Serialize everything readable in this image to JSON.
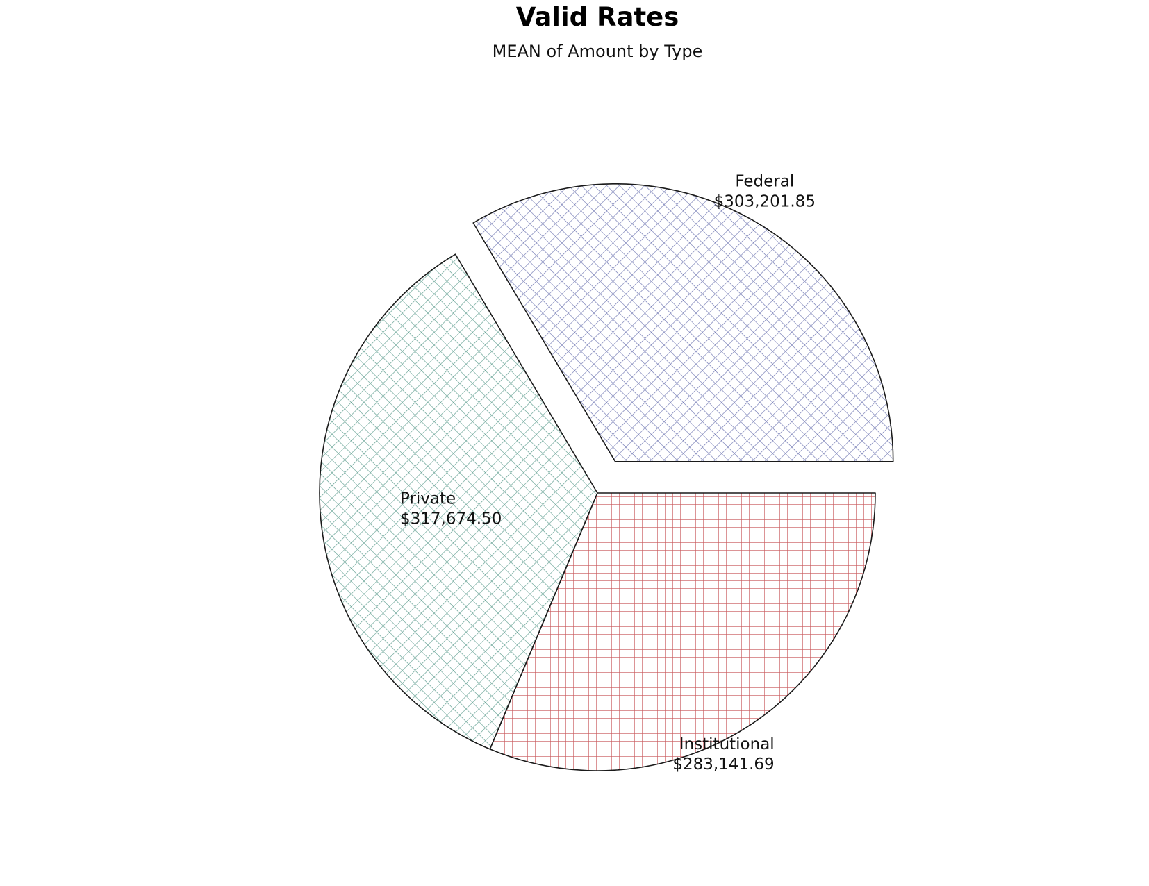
{
  "chart_data": {
    "type": "pie",
    "title": "Valid Rates",
    "subtitle": "MEAN of Amount by Type",
    "statistic": "MEAN",
    "categories": [
      "Federal",
      "Private",
      "Institutional"
    ],
    "values": [
      303201.85,
      317674.5,
      283141.69
    ],
    "value_labels": [
      "$303,201.85",
      "$317,674.50",
      "$283,141.69"
    ],
    "exploded": [
      "Federal"
    ],
    "fill_style": "crosshatch",
    "colors": {
      "Federal": "#6f76b2",
      "Private": "#5f9e90",
      "Institutional": "#c85a5e",
      "outline": "#1a1a1a"
    }
  }
}
